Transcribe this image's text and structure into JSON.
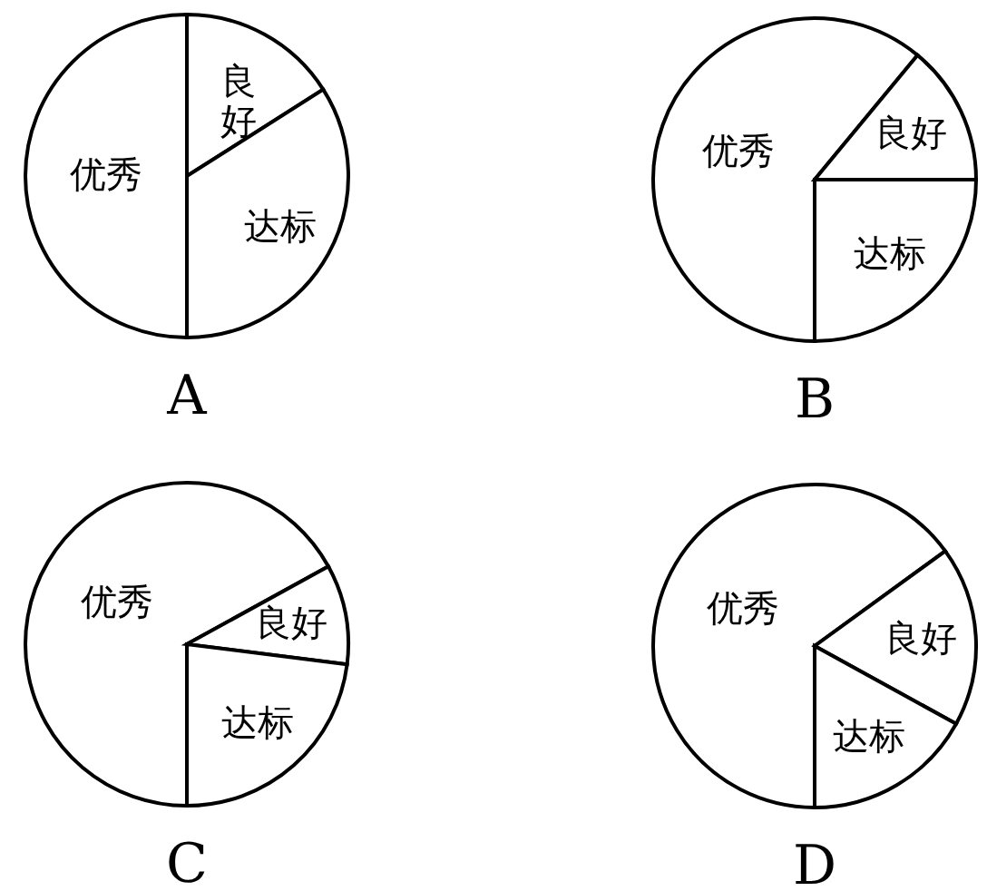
{
  "chart_data": [
    {
      "type": "pie",
      "title": "A",
      "categories": [
        "优秀",
        "良好",
        "达标"
      ],
      "values": [
        50,
        16,
        34
      ],
      "colors": [
        "#ffffff",
        "#ffffff",
        "#ffffff"
      ]
    },
    {
      "type": "pie",
      "title": "B",
      "categories": [
        "优秀",
        "良好",
        "达标"
      ],
      "values": [
        61,
        14,
        25
      ],
      "colors": [
        "#ffffff",
        "#ffffff",
        "#ffffff"
      ]
    },
    {
      "type": "pie",
      "title": "C",
      "categories": [
        "优秀",
        "良好",
        "达标"
      ],
      "values": [
        67,
        10,
        23
      ],
      "colors": [
        "#ffffff",
        "#ffffff",
        "#ffffff"
      ]
    },
    {
      "type": "pie",
      "title": "D",
      "categories": [
        "优秀",
        "良好",
        "达标"
      ],
      "values": [
        65,
        18,
        17
      ],
      "colors": [
        "#ffffff",
        "#ffffff",
        "#ffffff"
      ]
    }
  ]
}
